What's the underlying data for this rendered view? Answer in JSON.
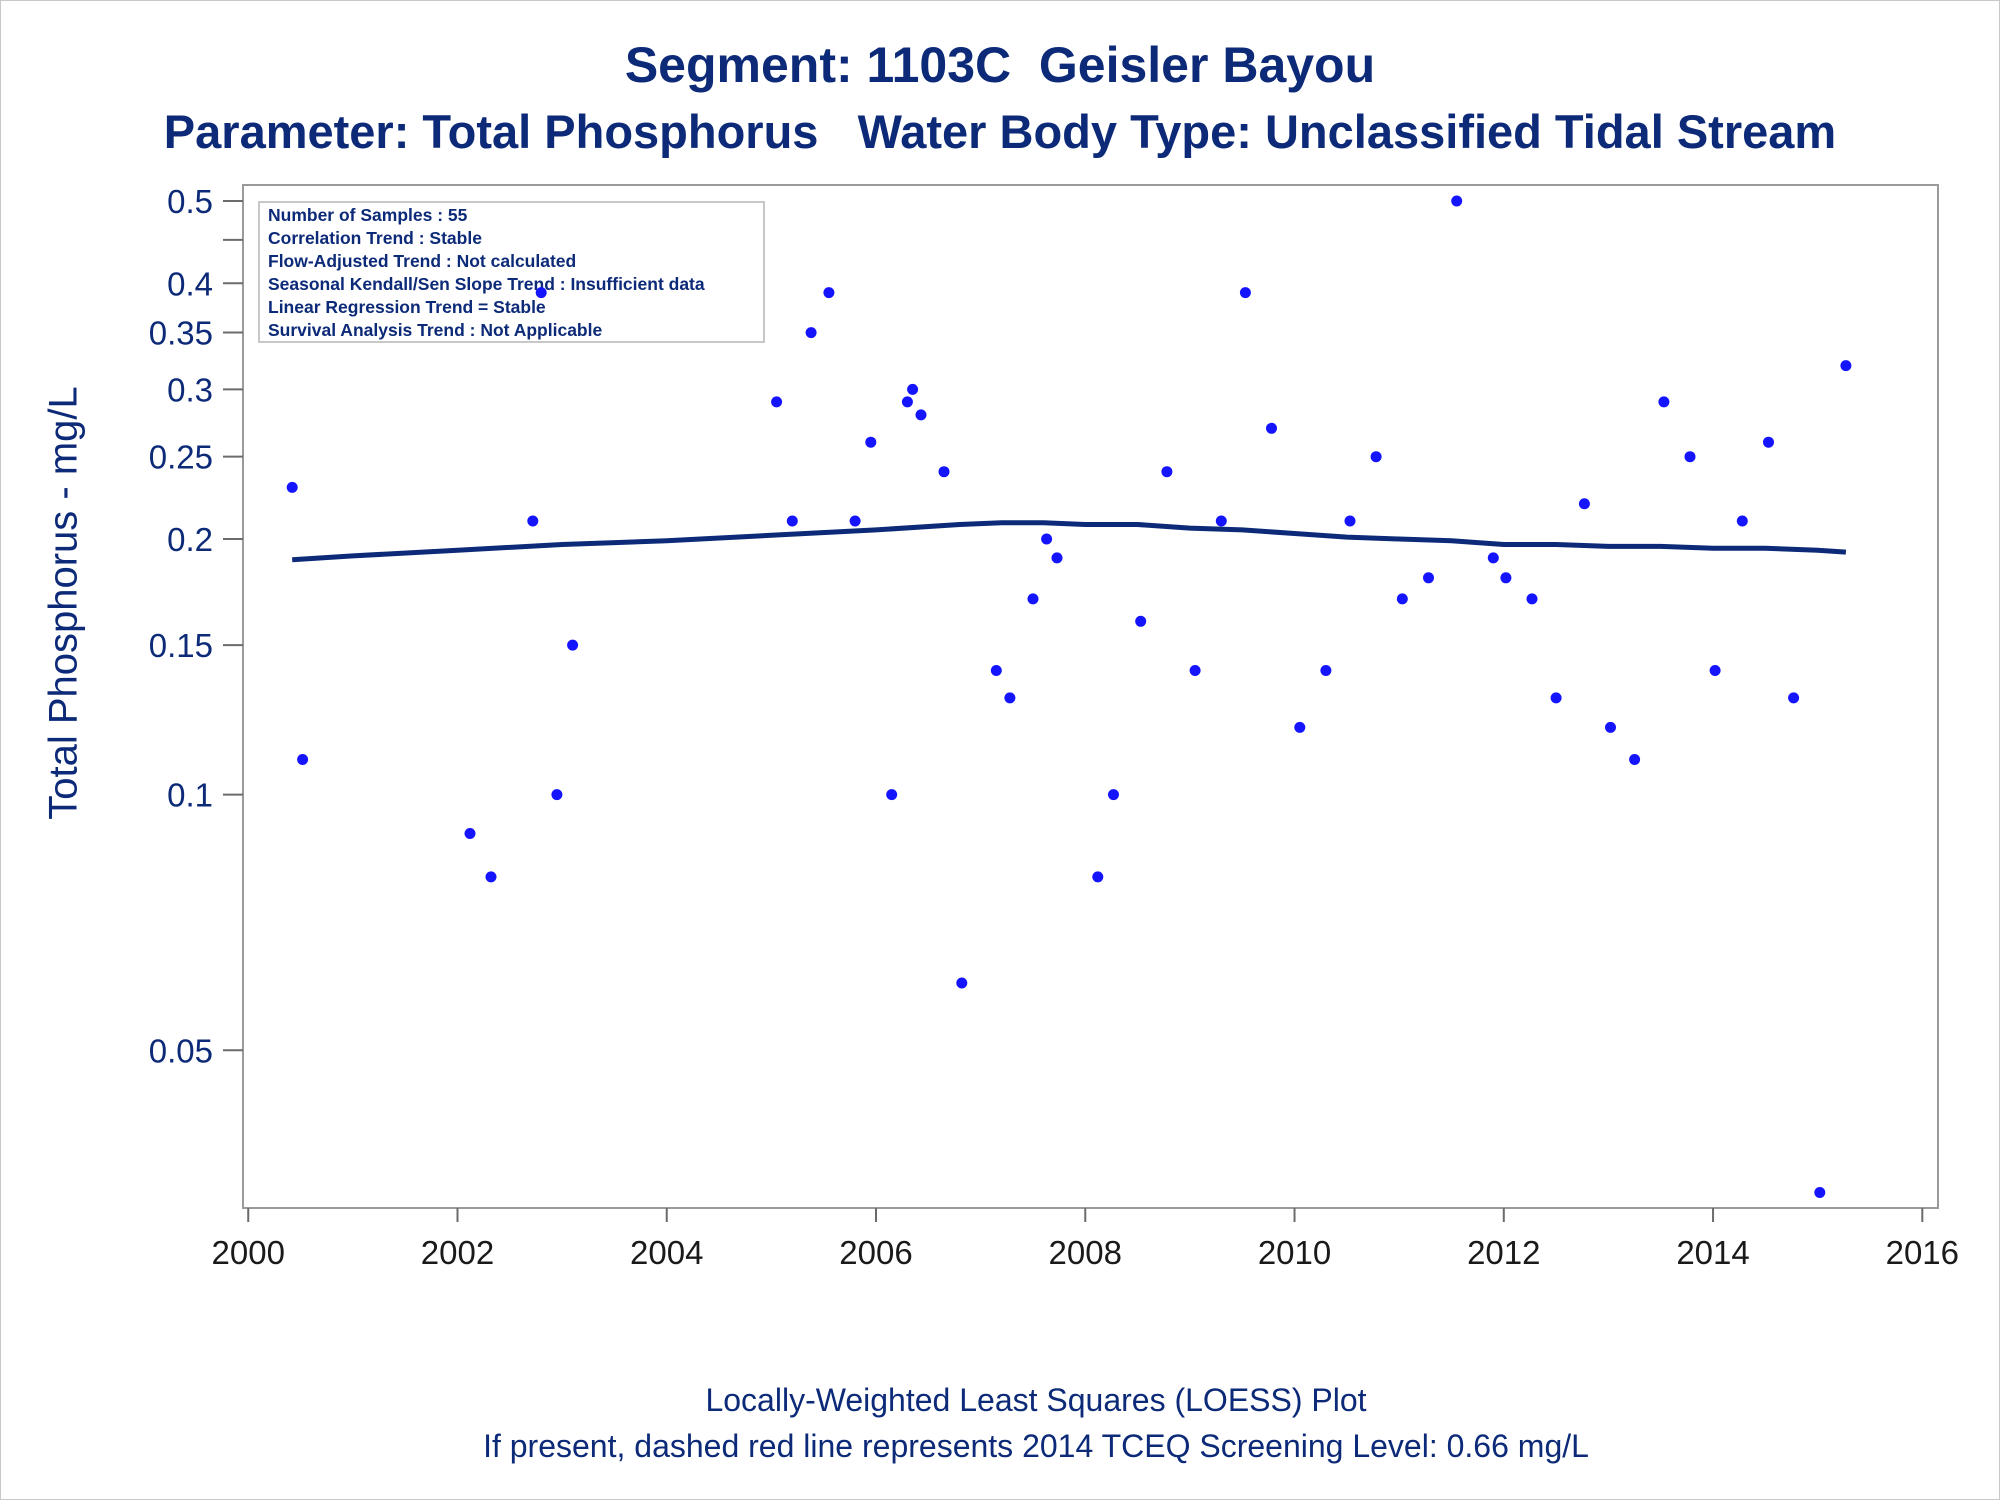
{
  "chart_data": {
    "type": "scatter",
    "title": "Segment: 1103C  Geisler Bayou",
    "subtitle": "Parameter: Total Phosphorus   Water Body Type: Unclassified Tidal Stream",
    "xlabel": "",
    "ylabel": "Total Phosphorus - mg/L",
    "footnotes": [
      "Locally-Weighted Least Squares (LOESS) Plot",
      "If present, dashed red line represents 2014 TCEQ Screening Level: 0.66 mg/L"
    ],
    "yscale": "log",
    "ylim": [
      0.0335,
      0.5
    ],
    "xlim": [
      1999.95,
      2016.15
    ],
    "xticks": [
      "2000",
      "2002",
      "2004",
      "2006",
      "2008",
      "2010",
      "2012",
      "2014",
      "2016"
    ],
    "yticks": [
      "0.05",
      "0.1",
      "0.15",
      "0.2",
      "0.25",
      "0.3",
      "0.35",
      "0.4",
      "0.5"
    ],
    "grid": false,
    "inset_box": [
      "Number of Samples : 55",
      "Correlation Trend : Stable",
      "Flow-Adjusted Trend : Not calculated",
      "Seasonal Kendall/Sen Slope Trend : Insufficient data",
      "Linear Regression Trend = Stable",
      "Survival Analysis Trend : Not Applicable"
    ],
    "series": [
      {
        "kind": "points",
        "color": "#1414ff",
        "x": [
          2000.42,
          2000.52,
          2002.12,
          2002.32,
          2002.72,
          2002.8,
          2002.95,
          2003.1,
          2005.05,
          2005.2,
          2005.38,
          2005.55,
          2005.8,
          2005.95,
          2006.15,
          2006.3,
          2006.35,
          2006.43,
          2006.65,
          2006.82,
          2007.15,
          2007.28,
          2007.5,
          2007.63,
          2007.73,
          2008.12,
          2008.27,
          2008.53,
          2008.78,
          2009.05,
          2009.3,
          2009.53,
          2009.78,
          2010.05,
          2010.3,
          2010.53,
          2010.78,
          2011.03,
          2011.28,
          2011.55,
          2011.9,
          2012.02,
          2012.27,
          2012.5,
          2012.77,
          2013.02,
          2013.25,
          2013.53,
          2013.78,
          2014.02,
          2014.28,
          2014.53,
          2014.77,
          2015.02,
          2015.27
        ],
        "y": [
          0.23,
          0.11,
          0.09,
          0.08,
          0.21,
          0.39,
          0.1,
          0.15,
          0.29,
          0.21,
          0.35,
          0.39,
          0.21,
          0.26,
          0.1,
          0.29,
          0.3,
          0.28,
          0.24,
          0.06,
          0.14,
          0.13,
          0.17,
          0.2,
          0.19,
          0.08,
          0.1,
          0.16,
          0.24,
          0.14,
          0.21,
          0.39,
          0.27,
          0.12,
          0.14,
          0.21,
          0.25,
          0.17,
          0.18,
          0.5,
          0.19,
          0.18,
          0.17,
          0.13,
          0.22,
          0.12,
          0.11,
          0.29,
          0.25,
          0.14,
          0.21,
          0.26,
          0.13,
          0.034,
          0.32
        ]
      },
      {
        "kind": "loess",
        "color": "#0c2a78",
        "x": [
          2000.42,
          2001.0,
          2002.0,
          2003.0,
          2004.0,
          2005.0,
          2006.0,
          2006.8,
          2007.2,
          2007.6,
          2008.0,
          2008.5,
          2009.0,
          2009.5,
          2010.0,
          2010.5,
          2011.0,
          2011.5,
          2012.0,
          2012.5,
          2013.0,
          2013.5,
          2014.0,
          2014.5,
          2015.0,
          2015.27
        ],
        "y": [
          0.189,
          0.191,
          0.194,
          0.197,
          0.199,
          0.202,
          0.205,
          0.208,
          0.209,
          0.209,
          0.208,
          0.208,
          0.206,
          0.205,
          0.203,
          0.201,
          0.2,
          0.199,
          0.197,
          0.197,
          0.196,
          0.196,
          0.195,
          0.195,
          0.194,
          0.193
        ]
      }
    ]
  }
}
